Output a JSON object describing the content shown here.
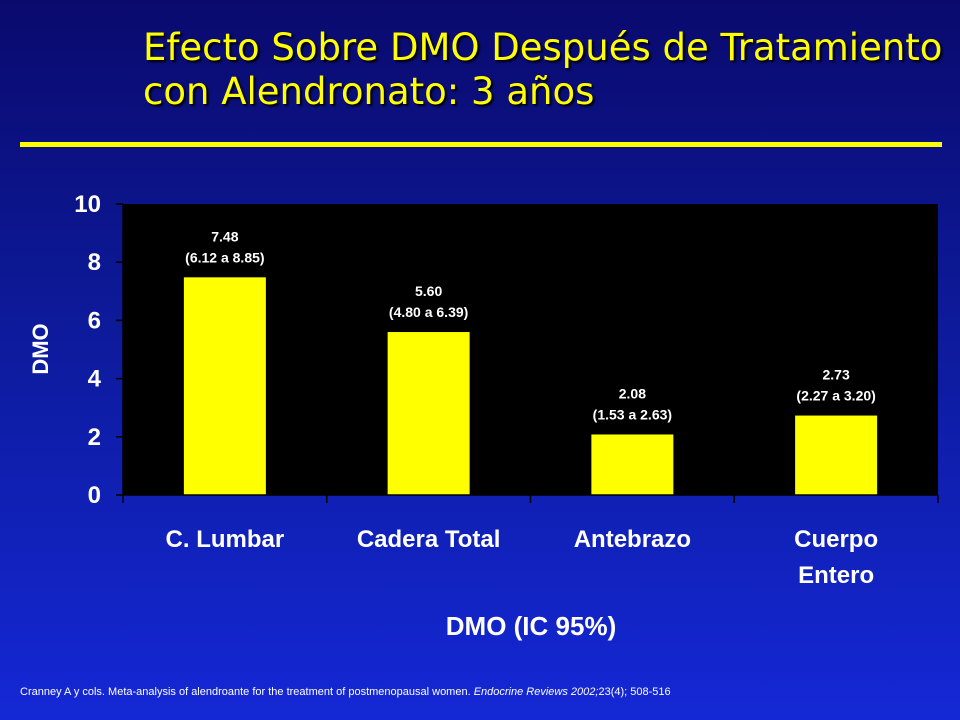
{
  "title": {
    "line1": "Efecto Sobre DMO Después de Tratamiento",
    "line2": "con Alendronato: 3 años"
  },
  "citation": {
    "authors": "Cranney  A y cols. Meta-analysis of alendroante for the treatment of postmenopausal women.",
    "journal": "Endocrine Reviews 2002;",
    "issue": "23(4);  508-516"
  },
  "colors": {
    "title": "#ffff00",
    "bar": "#ffff00",
    "plot_background": "#000000",
    "text": "#ffffff"
  },
  "chart_data": {
    "type": "bar",
    "categories": [
      [
        "C. Lumbar"
      ],
      [
        "Cadera Total"
      ],
      [
        "Antebrazo"
      ],
      [
        "Cuerpo",
        "Entero"
      ]
    ],
    "values": [
      7.48,
      5.6,
      2.08,
      2.73
    ],
    "labels": [
      [
        "7.48",
        "(6.12  a 8.85)"
      ],
      [
        "5.60",
        "(4.80 a 6.39)"
      ],
      [
        "2.08",
        "(1.53 a 2.63)"
      ],
      [
        "2.73",
        "(2.27 a 3.20)"
      ]
    ],
    "xlabel": "DMO (IC 95%)",
    "ylabel": "DMO",
    "ylim": [
      0,
      10
    ],
    "yticks": [
      "0",
      "2",
      "4",
      "6",
      "8",
      "10"
    ],
    "grid": false,
    "legend": "none"
  }
}
